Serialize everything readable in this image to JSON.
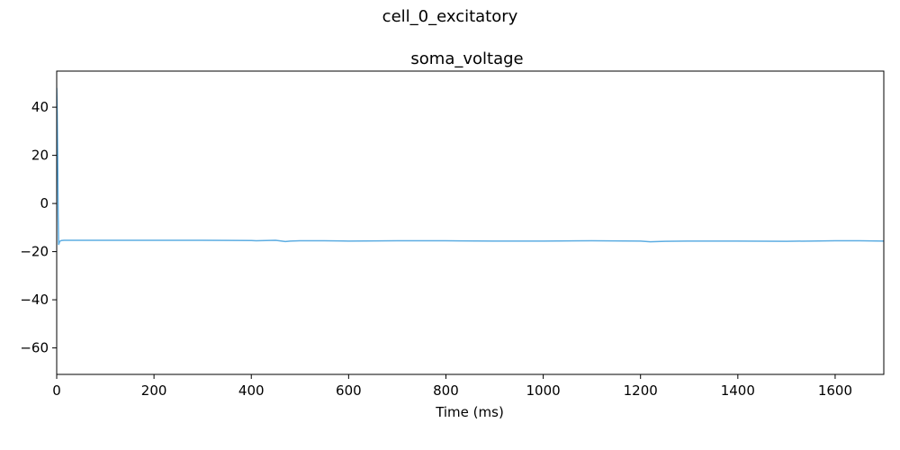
{
  "figure": {
    "suptitle": "cell_0_excitatory"
  },
  "chart_data": {
    "type": "line",
    "title": "soma_voltage",
    "xlabel": "Time (ms)",
    "ylabel": "",
    "xlim": [
      0,
      1700
    ],
    "ylim": [
      -71,
      55
    ],
    "x_ticks": [
      0,
      200,
      400,
      600,
      800,
      1000,
      1200,
      1400,
      1600
    ],
    "y_ticks": [
      -60,
      -40,
      -20,
      0,
      20,
      40
    ],
    "grid": false,
    "series_color": "#5dade2",
    "series": [
      {
        "x": [
          0,
          1,
          2,
          3,
          4,
          5,
          6,
          8,
          10,
          15,
          20,
          50,
          100,
          200,
          300,
          400,
          410,
          450,
          470,
          480,
          500,
          550,
          600,
          700,
          800,
          900,
          1000,
          1100,
          1200,
          1220,
          1250,
          1300,
          1400,
          1500,
          1550,
          1600,
          1650,
          1700
        ],
        "y": [
          48,
          38,
          20,
          -5,
          -17,
          -16.5,
          -15.8,
          -15.5,
          -15.4,
          -15.3,
          -15.3,
          -15.3,
          -15.3,
          -15.3,
          -15.3,
          -15.4,
          -15.5,
          -15.3,
          -15.8,
          -15.6,
          -15.5,
          -15.5,
          -15.6,
          -15.5,
          -15.5,
          -15.6,
          -15.6,
          -15.5,
          -15.6,
          -15.9,
          -15.7,
          -15.6,
          -15.6,
          -15.7,
          -15.6,
          -15.5,
          -15.5,
          -15.6
        ]
      }
    ]
  }
}
